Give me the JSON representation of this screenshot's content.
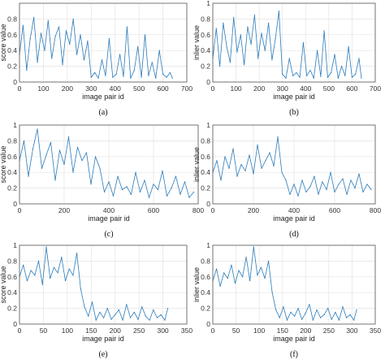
{
  "chart_data": [
    {
      "type": "line",
      "caption": "(a)",
      "xlabel": "image pair id",
      "ylabel": "score value",
      "xlim": [
        0,
        700
      ],
      "ylim": [
        0,
        1
      ],
      "xticks": [
        "0",
        "100",
        "200",
        "300",
        "400",
        "500",
        "600",
        "700"
      ],
      "yticks": [
        "0",
        "0.2",
        "0.4",
        "0.6",
        "0.8"
      ],
      "grid": true,
      "color": "#2b7bba",
      "series": [
        {
          "x": [
            0,
            15,
            30,
            45,
            60,
            75,
            90,
            105,
            120,
            135,
            150,
            165,
            180,
            195,
            210,
            225,
            240,
            255,
            270,
            285,
            300,
            315,
            330,
            345,
            360,
            375,
            390,
            405,
            420,
            435,
            450,
            465,
            480,
            495,
            510,
            525,
            540,
            555,
            570,
            585,
            600,
            615,
            630,
            640
          ],
          "values": [
            0.35,
            0.72,
            0.15,
            0.55,
            0.82,
            0.25,
            0.62,
            0.4,
            0.78,
            0.3,
            0.58,
            0.7,
            0.22,
            0.65,
            0.48,
            0.8,
            0.35,
            0.6,
            0.28,
            0.52,
            0.06,
            0.12,
            0.05,
            0.28,
            0.08,
            0.55,
            0.06,
            0.1,
            0.35,
            0.07,
            0.7,
            0.05,
            0.15,
            0.45,
            0.06,
            0.6,
            0.08,
            0.25,
            0.05,
            0.4,
            0.1,
            0.06,
            0.12,
            0.05
          ]
        }
      ]
    },
    {
      "type": "line",
      "caption": "(b)",
      "xlabel": "image pair id",
      "ylabel": "inlier value",
      "xlim": [
        0,
        700
      ],
      "ylim": [
        0,
        1
      ],
      "xticks": [
        "0",
        "100",
        "200",
        "300",
        "400",
        "500",
        "600",
        "700"
      ],
      "yticks": [
        "0",
        "0.2",
        "0.4",
        "0.6",
        "0.8",
        "1"
      ],
      "grid": true,
      "color": "#2b7bba",
      "series": [
        {
          "x": [
            0,
            15,
            30,
            45,
            60,
            75,
            90,
            105,
            120,
            135,
            150,
            165,
            180,
            195,
            210,
            225,
            240,
            255,
            270,
            285,
            300,
            315,
            330,
            345,
            360,
            375,
            390,
            405,
            420,
            435,
            450,
            465,
            480,
            495,
            510,
            525,
            540,
            555,
            570,
            585,
            600,
            615,
            630,
            640
          ],
          "values": [
            0.3,
            0.68,
            0.2,
            0.75,
            0.45,
            0.25,
            0.82,
            0.38,
            0.6,
            0.22,
            0.7,
            0.48,
            0.85,
            0.3,
            0.62,
            0.4,
            0.75,
            0.28,
            0.55,
            0.9,
            0.1,
            0.05,
            0.3,
            0.08,
            0.12,
            0.06,
            0.5,
            0.08,
            0.15,
            0.05,
            0.4,
            0.07,
            0.65,
            0.06,
            0.12,
            0.35,
            0.05,
            0.2,
            0.08,
            0.45,
            0.06,
            0.1,
            0.3,
            0.05
          ]
        }
      ]
    },
    {
      "type": "line",
      "caption": "(c)",
      "xlabel": "image pair id",
      "ylabel": "score value",
      "xlim": [
        0,
        800
      ],
      "ylim": [
        0,
        1
      ],
      "xticks": [
        "0",
        "200",
        "400",
        "600",
        "800"
      ],
      "yticks": [
        "0",
        "0.2",
        "0.4",
        "0.6",
        "0.8",
        "1"
      ],
      "grid": true,
      "color": "#2b7bba",
      "series": [
        {
          "x": [
            0,
            20,
            40,
            60,
            80,
            100,
            120,
            140,
            160,
            180,
            200,
            220,
            240,
            260,
            280,
            300,
            320,
            340,
            360,
            380,
            400,
            420,
            440,
            460,
            480,
            500,
            520,
            540,
            560,
            580,
            600,
            620,
            640,
            660,
            680,
            700,
            720,
            740,
            760,
            780
          ],
          "values": [
            0.55,
            0.8,
            0.35,
            0.7,
            0.95,
            0.45,
            0.62,
            0.78,
            0.3,
            0.68,
            0.5,
            0.85,
            0.4,
            0.72,
            0.55,
            0.65,
            0.25,
            0.6,
            0.45,
            0.15,
            0.28,
            0.1,
            0.35,
            0.18,
            0.22,
            0.12,
            0.4,
            0.15,
            0.3,
            0.08,
            0.25,
            0.18,
            0.42,
            0.1,
            0.2,
            0.35,
            0.12,
            0.28,
            0.08,
            0.15
          ]
        }
      ]
    },
    {
      "type": "line",
      "caption": "(d)",
      "xlabel": "image pair id",
      "ylabel": "inlier value",
      "xlim": [
        0,
        800
      ],
      "ylim": [
        0,
        1
      ],
      "xticks": [
        "0",
        "200",
        "400",
        "600",
        "800"
      ],
      "yticks": [
        "0",
        "0.2",
        "0.4",
        "0.6",
        "0.8",
        "1"
      ],
      "grid": true,
      "color": "#2b7bba",
      "series": [
        {
          "x": [
            0,
            20,
            40,
            60,
            80,
            100,
            120,
            140,
            160,
            180,
            200,
            220,
            240,
            260,
            280,
            300,
            320,
            340,
            360,
            380,
            400,
            420,
            440,
            460,
            480,
            500,
            520,
            540,
            560,
            580,
            600,
            620,
            640,
            660,
            680,
            700,
            720,
            740,
            760,
            780
          ],
          "values": [
            0.4,
            0.55,
            0.3,
            0.6,
            0.45,
            0.7,
            0.35,
            0.5,
            0.42,
            0.62,
            0.38,
            0.75,
            0.45,
            0.55,
            0.65,
            0.48,
            0.85,
            0.4,
            0.3,
            0.12,
            0.25,
            0.1,
            0.3,
            0.15,
            0.22,
            0.35,
            0.12,
            0.28,
            0.18,
            0.4,
            0.15,
            0.25,
            0.32,
            0.12,
            0.3,
            0.2,
            0.38,
            0.15,
            0.25,
            0.18
          ]
        }
      ]
    },
    {
      "type": "line",
      "caption": "(e)",
      "xlabel": "image pair id",
      "ylabel": "score value",
      "xlim": [
        0,
        350
      ],
      "ylim": [
        0,
        1
      ],
      "xticks": [
        "0",
        "50",
        "100",
        "150",
        "200",
        "250",
        "300",
        "350"
      ],
      "yticks": [
        "0",
        "0.2",
        "0.4",
        "0.6",
        "0.8",
        "1"
      ],
      "grid": true,
      "color": "#2b7bba",
      "series": [
        {
          "x": [
            0,
            8,
            16,
            24,
            32,
            40,
            48,
            56,
            64,
            72,
            80,
            88,
            96,
            104,
            112,
            120,
            128,
            136,
            144,
            152,
            160,
            168,
            176,
            184,
            192,
            200,
            208,
            216,
            224,
            232,
            240,
            248,
            256,
            264,
            272,
            280,
            288,
            296,
            304,
            310
          ],
          "values": [
            0.6,
            0.75,
            0.55,
            0.68,
            0.62,
            0.8,
            0.5,
            0.98,
            0.58,
            0.72,
            0.65,
            0.85,
            0.55,
            0.7,
            0.62,
            0.9,
            0.45,
            0.22,
            0.1,
            0.28,
            0.05,
            0.15,
            0.08,
            0.2,
            0.06,
            0.12,
            0.18,
            0.05,
            0.25,
            0.08,
            0.15,
            0.06,
            0.22,
            0.1,
            0.05,
            0.18,
            0.08,
            0.12,
            0.05,
            0.2
          ]
        }
      ]
    },
    {
      "type": "line",
      "caption": "(f)",
      "xlabel": "image pair id",
      "ylabel": "inlier value",
      "xlim": [
        0,
        350
      ],
      "ylim": [
        0,
        1
      ],
      "xticks": [
        "0",
        "50",
        "100",
        "150",
        "200",
        "250",
        "300",
        "350"
      ],
      "yticks": [
        "0",
        "0.2",
        "0.4",
        "0.6",
        "0.8",
        "1"
      ],
      "grid": true,
      "color": "#2b7bba",
      "series": [
        {
          "x": [
            0,
            8,
            16,
            24,
            32,
            40,
            48,
            56,
            64,
            72,
            80,
            88,
            96,
            104,
            112,
            120,
            128,
            136,
            144,
            152,
            160,
            168,
            176,
            184,
            192,
            200,
            208,
            216,
            224,
            232,
            240,
            248,
            256,
            264,
            272,
            280,
            288,
            296,
            304,
            310
          ],
          "values": [
            0.55,
            0.7,
            0.48,
            0.65,
            0.58,
            0.75,
            0.52,
            0.68,
            0.6,
            0.85,
            0.55,
            0.98,
            0.62,
            0.72,
            0.58,
            0.8,
            0.4,
            0.18,
            0.08,
            0.22,
            0.05,
            0.15,
            0.1,
            0.2,
            0.06,
            0.14,
            0.25,
            0.05,
            0.18,
            0.08,
            0.12,
            0.2,
            0.06,
            0.15,
            0.05,
            0.22,
            0.08,
            0.12,
            0.05,
            0.18
          ]
        }
      ]
    }
  ]
}
